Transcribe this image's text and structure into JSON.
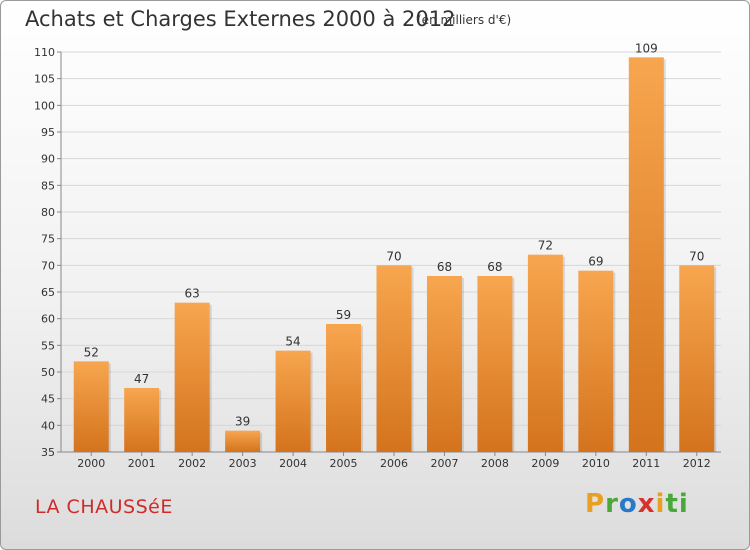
{
  "title": "Achats et Charges Externes 2000 à 2012",
  "subtitle": "(en milliers d'€)",
  "commune": "LA CHAUSSéE",
  "logo": {
    "p1": "P",
    "p2": "r",
    "p3": "o",
    "p4": "x",
    "p5": "i",
    "p6": "ti"
  },
  "colors": {
    "bar_light": "#f7a64f",
    "bar_dark": "#d4731d",
    "commune": "#d02a2a"
  },
  "chart_data": {
    "type": "bar",
    "categories": [
      "2000",
      "2001",
      "2002",
      "2003",
      "2004",
      "2005",
      "2006",
      "2007",
      "2008",
      "2009",
      "2010",
      "2011",
      "2012"
    ],
    "values": [
      52,
      47,
      63,
      39,
      54,
      59,
      70,
      68,
      68,
      72,
      69,
      109,
      70
    ],
    "ylim": [
      35,
      110
    ],
    "yticks": [
      35,
      40,
      45,
      50,
      55,
      60,
      65,
      70,
      75,
      80,
      85,
      90,
      95,
      100,
      105,
      110
    ],
    "grid": true,
    "title": "Achats et Charges Externes 2000 à 2012",
    "xlabel": "",
    "ylabel": ""
  }
}
